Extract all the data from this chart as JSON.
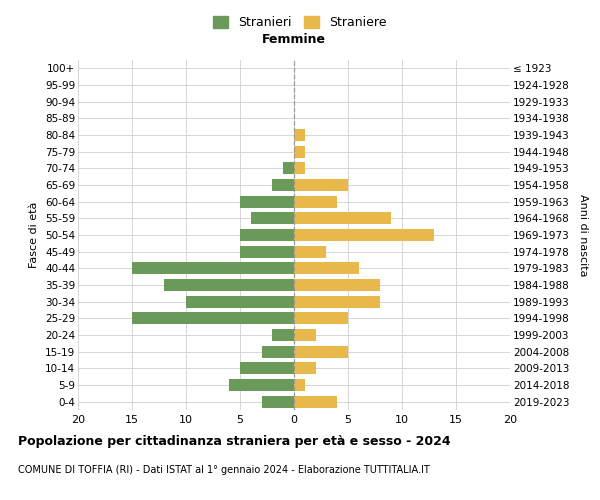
{
  "age_groups": [
    "0-4",
    "5-9",
    "10-14",
    "15-19",
    "20-24",
    "25-29",
    "30-34",
    "35-39",
    "40-44",
    "45-49",
    "50-54",
    "55-59",
    "60-64",
    "65-69",
    "70-74",
    "75-79",
    "80-84",
    "85-89",
    "90-94",
    "95-99",
    "100+"
  ],
  "birth_years": [
    "2019-2023",
    "2014-2018",
    "2009-2013",
    "2004-2008",
    "1999-2003",
    "1994-1998",
    "1989-1993",
    "1984-1988",
    "1979-1983",
    "1974-1978",
    "1969-1973",
    "1964-1968",
    "1959-1963",
    "1954-1958",
    "1949-1953",
    "1944-1948",
    "1939-1943",
    "1934-1938",
    "1929-1933",
    "1924-1928",
    "≤ 1923"
  ],
  "males": [
    3,
    6,
    5,
    3,
    2,
    15,
    10,
    12,
    15,
    5,
    5,
    4,
    5,
    2,
    1,
    0,
    0,
    0,
    0,
    0,
    0
  ],
  "females": [
    4,
    1,
    2,
    5,
    2,
    5,
    8,
    8,
    6,
    3,
    13,
    9,
    4,
    5,
    1,
    1,
    1,
    0,
    0,
    0,
    0
  ],
  "male_color": "#6a9a5a",
  "female_color": "#e8b84b",
  "title": "Popolazione per cittadinanza straniera per età e sesso - 2024",
  "subtitle": "COMUNE DI TOFFIA (RI) - Dati ISTAT al 1° gennaio 2024 - Elaborazione TUTTITALIA.IT",
  "legend_male": "Stranieri",
  "legend_female": "Straniere",
  "header_right": "Femmine",
  "ylabel_left": "Fasce di età",
  "ylabel_right": "Anni di nascita",
  "xlim": 20,
  "background_color": "#ffffff",
  "grid_color": "#d0d0d0",
  "center_line_color": "#999999"
}
